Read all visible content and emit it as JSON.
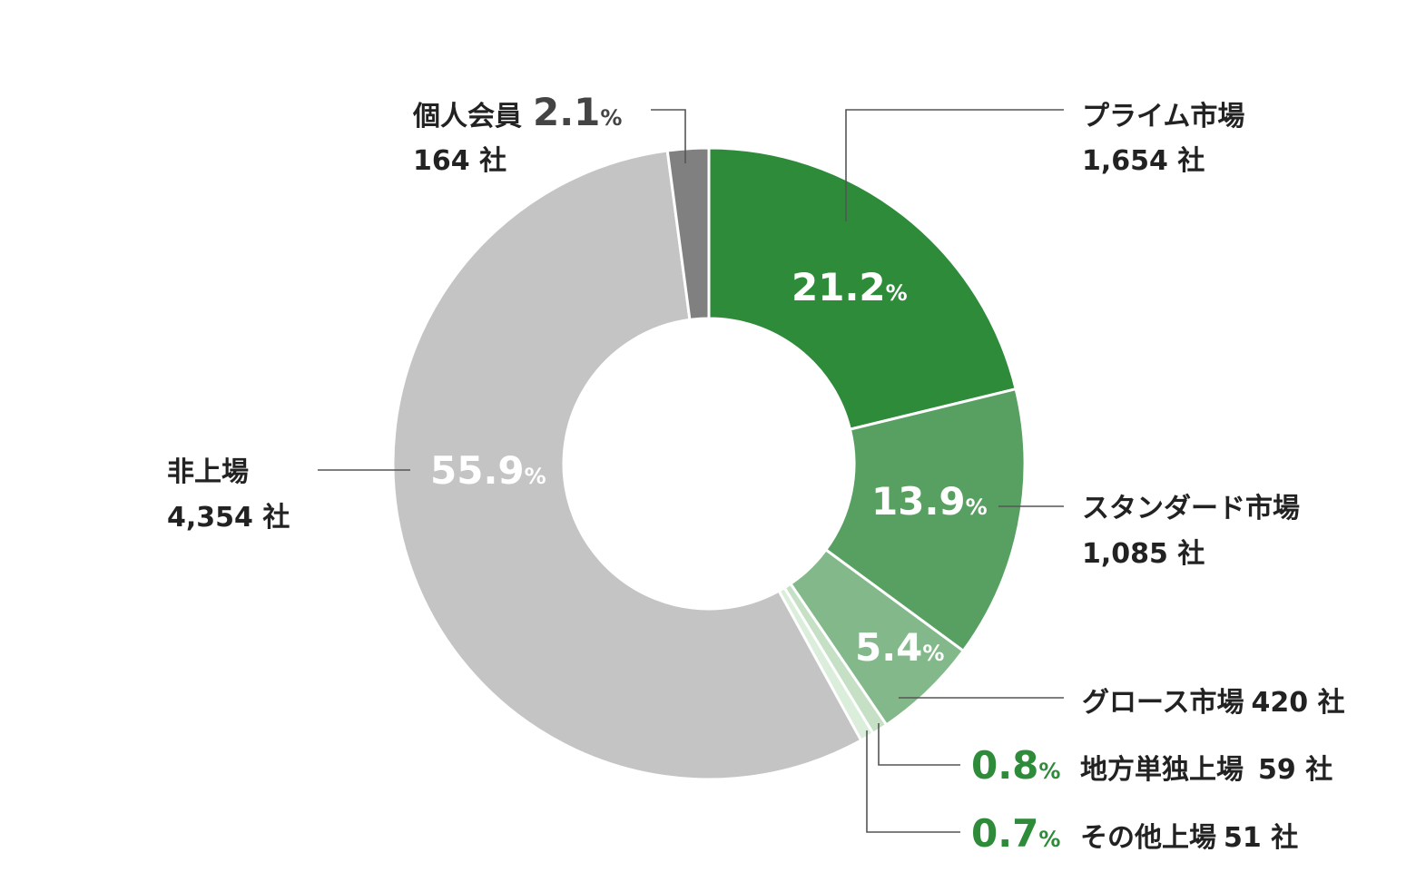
{
  "chart_data": {
    "type": "pie",
    "variant": "donut",
    "start_angle": "12 o'clock, clockwise",
    "slices": [
      {
        "name": "プライム市場",
        "count": "1,654 社",
        "percent": 21.2,
        "percent_label": "21.2",
        "color": "#2e8b3a"
      },
      {
        "name": "スタンダード市場",
        "count": "1,085 社",
        "percent": 13.9,
        "percent_label": "13.9",
        "color": "#58a062"
      },
      {
        "name": "グロース市場",
        "count": "420 社",
        "percent": 5.4,
        "percent_label": "5.4",
        "color": "#83b98a"
      },
      {
        "name": "地方単独上場",
        "count": "59 社",
        "percent": 0.8,
        "percent_label": "0.8",
        "color": "#c5e0c5"
      },
      {
        "name": "その他上場",
        "count": "51 社",
        "percent": 0.7,
        "percent_label": "0.7",
        "color": "#dbeddb"
      },
      {
        "name": "非上場",
        "count": "4,354 社",
        "percent": 55.9,
        "percent_label": "55.9",
        "color": "#c4c4c4"
      },
      {
        "name": "個人会員",
        "count": "164 社",
        "percent": 2.1,
        "percent_label": "2.1",
        "color": "#808080"
      }
    ],
    "percent_sign": "%"
  }
}
